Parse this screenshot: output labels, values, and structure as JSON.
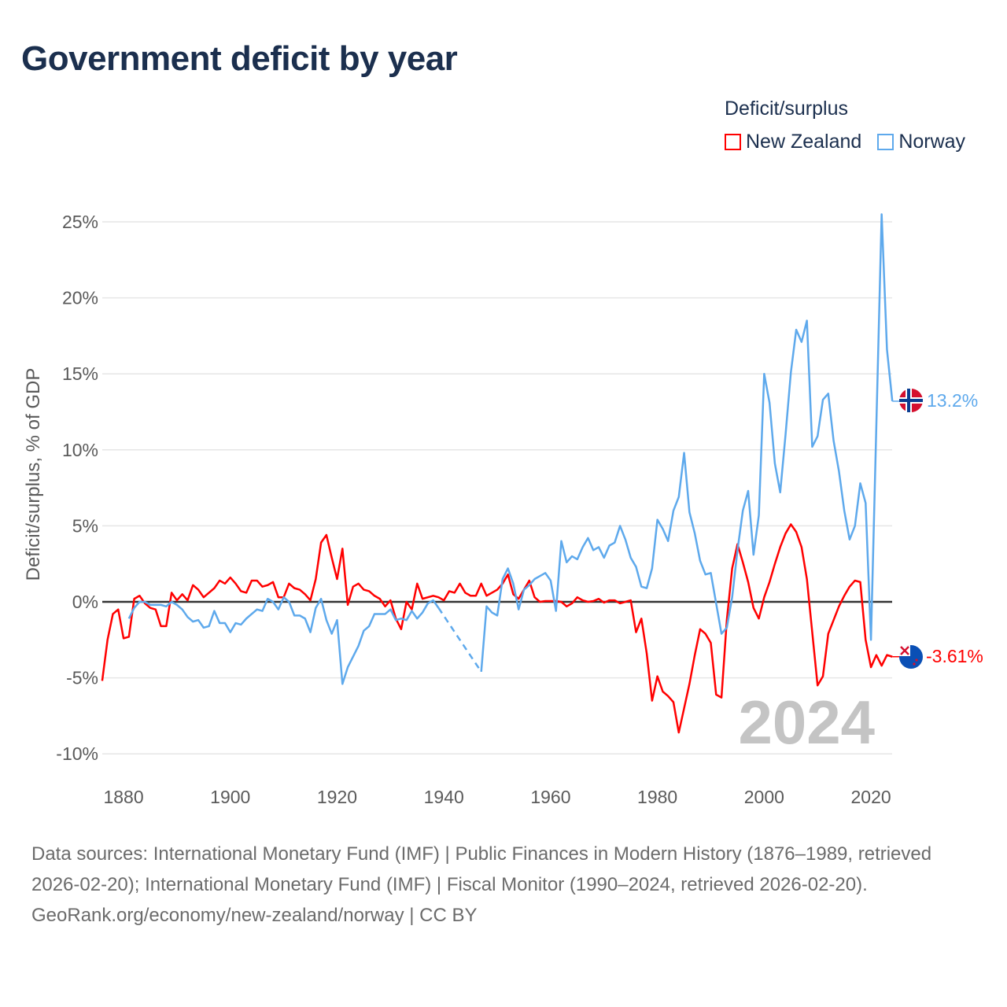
{
  "title": "Government deficit by year",
  "legend": {
    "title": "Deficit/surplus",
    "items": [
      {
        "name": "New Zealand",
        "color": "#ff0000"
      },
      {
        "name": "Norway",
        "color": "#5ea9ec"
      }
    ]
  },
  "watermark_year": "2024",
  "end_labels": {
    "norway": "13.2%",
    "new_zealand": "-3.61%"
  },
  "footer": {
    "sources": "Data sources: International Monetary Fund (IMF) | Public Finances in Modern History (1876–1989, retrieved 2026-02-20); International Monetary Fund (IMF) | Fiscal Monitor (1990–2024, retrieved 2026-02-20).",
    "credit": "GeoRank.org/economy/new-zealand/norway | CC BY"
  },
  "chart_data": {
    "type": "line",
    "title": "Government deficit by year",
    "ylabel": "Deficit/surplus, % of GDP",
    "xlabel": "",
    "xlim": [
      1876,
      2024
    ],
    "ylim": [
      -10,
      25
    ],
    "yticks": [
      -10,
      -5,
      0,
      5,
      10,
      15,
      20,
      25
    ],
    "ytick_labels": [
      "-10%",
      "-5%",
      "0%",
      "5%",
      "10%",
      "15%",
      "20%",
      "25%"
    ],
    "xticks": [
      1880,
      1900,
      1920,
      1940,
      1960,
      1980,
      2000,
      2020
    ],
    "xtick_labels": [
      "1880",
      "1900",
      "1920",
      "1940",
      "1960",
      "1980",
      "2000",
      "2020"
    ],
    "grid": true,
    "legend_position": "top-right",
    "series": [
      {
        "name": "New Zealand",
        "color": "#ff0000",
        "start_year": 1876,
        "values": [
          -5.2,
          -2.5,
          -0.8,
          -0.5,
          -2.4,
          -2.3,
          0.2,
          0.4,
          -0.1,
          -0.4,
          -0.5,
          -1.6,
          -1.6,
          0.6,
          0.1,
          0.5,
          0.1,
          1.1,
          0.8,
          0.3,
          0.6,
          0.9,
          1.4,
          1.2,
          1.6,
          1.2,
          0.7,
          0.6,
          1.4,
          1.4,
          1.0,
          1.1,
          1.3,
          0.3,
          0.3,
          1.2,
          0.9,
          0.8,
          0.5,
          0.1,
          1.5,
          3.9,
          4.4,
          2.9,
          1.5,
          3.5,
          -0.2,
          1.0,
          1.2,
          0.8,
          0.7,
          0.4,
          0.2,
          -0.3,
          0.1,
          -1.1,
          -1.8,
          0.0,
          -0.5,
          1.2,
          0.2,
          0.3,
          0.4,
          0.3,
          0.1,
          0.7,
          0.6,
          1.2,
          0.6,
          0.4,
          0.4,
          1.2,
          0.4,
          0.6,
          0.8,
          1.2,
          1.8,
          0.5,
          0.2,
          0.8,
          1.4,
          0.3,
          0.0,
          0.05,
          0.05,
          0.05,
          0.0,
          -0.3,
          -0.1,
          0.3,
          0.1,
          0.0,
          0.05,
          0.2,
          -0.05,
          0.1,
          0.1,
          -0.1,
          0.0,
          0.1,
          -2.0,
          -1.1,
          -3.4,
          -6.5,
          -4.9,
          -5.9,
          -6.2,
          -6.6,
          -8.6,
          -7.0,
          -5.4,
          -3.5,
          -1.8,
          -2.1,
          -2.7,
          -6.1,
          -6.3,
          -1.2,
          2.2,
          3.8,
          2.6,
          1.3,
          -0.4,
          -1.1,
          0.3,
          1.3,
          2.5,
          3.6,
          4.5,
          5.1,
          4.6,
          3.6,
          1.5,
          -2.0,
          -5.5,
          -4.9,
          -2.1,
          -1.2,
          -0.3,
          0.4,
          1.0,
          1.4,
          1.3,
          -2.5,
          -4.3,
          -3.5,
          -4.2,
          -3.5,
          -3.61
        ]
      },
      {
        "name": "Norway",
        "color": "#5ea9ec",
        "start_year": 1881,
        "values": [
          -1.1,
          -0.4,
          0.0,
          0.0,
          -0.2,
          -0.2,
          -0.2,
          -0.3,
          0.0,
          -0.2,
          -0.5,
          -1.0,
          -1.3,
          -1.2,
          -1.7,
          -1.6,
          -0.6,
          -1.4,
          -1.4,
          -2.0,
          -1.4,
          -1.5,
          -1.1,
          -0.8,
          -0.5,
          -0.6,
          0.2,
          0.0,
          -0.5,
          0.3,
          0.0,
          -0.9,
          -0.9,
          -1.1,
          -2.0,
          -0.4,
          0.2,
          -1.2,
          -2.1,
          -1.2,
          -5.4,
          -4.3,
          -3.6,
          -2.9,
          -1.9,
          -1.6,
          -0.8,
          -0.8,
          -0.8,
          -0.5,
          -1.2,
          -1.1,
          -1.2,
          -0.6,
          -1.1,
          -0.7,
          -0.1,
          0.1,
          -0.4,
          null,
          null,
          null,
          null,
          null,
          null,
          null,
          -4.6,
          -0.3,
          -0.7,
          -0.9,
          1.5,
          2.2,
          1.2,
          -0.5,
          0.8,
          1.1,
          1.5,
          1.7,
          1.9,
          1.4,
          -0.6,
          4.0,
          2.6,
          3.0,
          2.8,
          3.6,
          4.2,
          3.4,
          3.6,
          2.9,
          3.7,
          3.9,
          5.0,
          4.1,
          2.9,
          2.3,
          1.0,
          0.9,
          2.2,
          5.4,
          4.8,
          4.0,
          6.0,
          6.9,
          9.8,
          5.9,
          4.5,
          2.7,
          1.8,
          1.9,
          -0.1,
          -2.1,
          -1.7,
          0.3,
          3.4,
          6.0,
          7.3,
          3.1,
          5.7,
          15.0,
          13.1,
          9.1,
          7.2,
          11.0,
          15.1,
          17.9,
          17.1,
          18.5,
          10.2,
          10.9,
          13.3,
          13.7,
          10.6,
          8.6,
          6.0,
          4.1,
          5.0,
          7.8,
          6.5,
          -2.5,
          11.5,
          25.5,
          16.6,
          13.2
        ]
      }
    ]
  }
}
